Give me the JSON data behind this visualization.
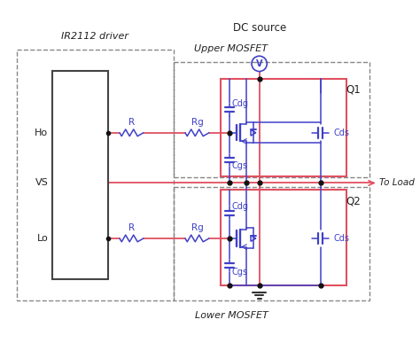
{
  "bg_color": "#ffffff",
  "red": "#e05060",
  "blue": "#4040c8",
  "black": "#333333",
  "gray": "#666666",
  "text_color": "#222222",
  "title": "DC source",
  "label_ir2112": "IR2112 driver",
  "label_upper": "Upper MOSFET",
  "label_lower": "Lower MOSFET",
  "label_ho": "Ho",
  "label_vs": "VS",
  "label_lo": "Lo",
  "label_r1": "R",
  "label_r2": "R",
  "label_rg1": "Rg",
  "label_rg2": "Rg",
  "label_cdg1": "Cdg",
  "label_cgs1": "Cgs",
  "label_cds1": "Cds",
  "label_cdg2": "Cdg",
  "label_cgs2": "Cgs",
  "label_cds2": "Cds",
  "label_q1": "Q1",
  "label_q2": "Q2",
  "label_toload": "To Load"
}
